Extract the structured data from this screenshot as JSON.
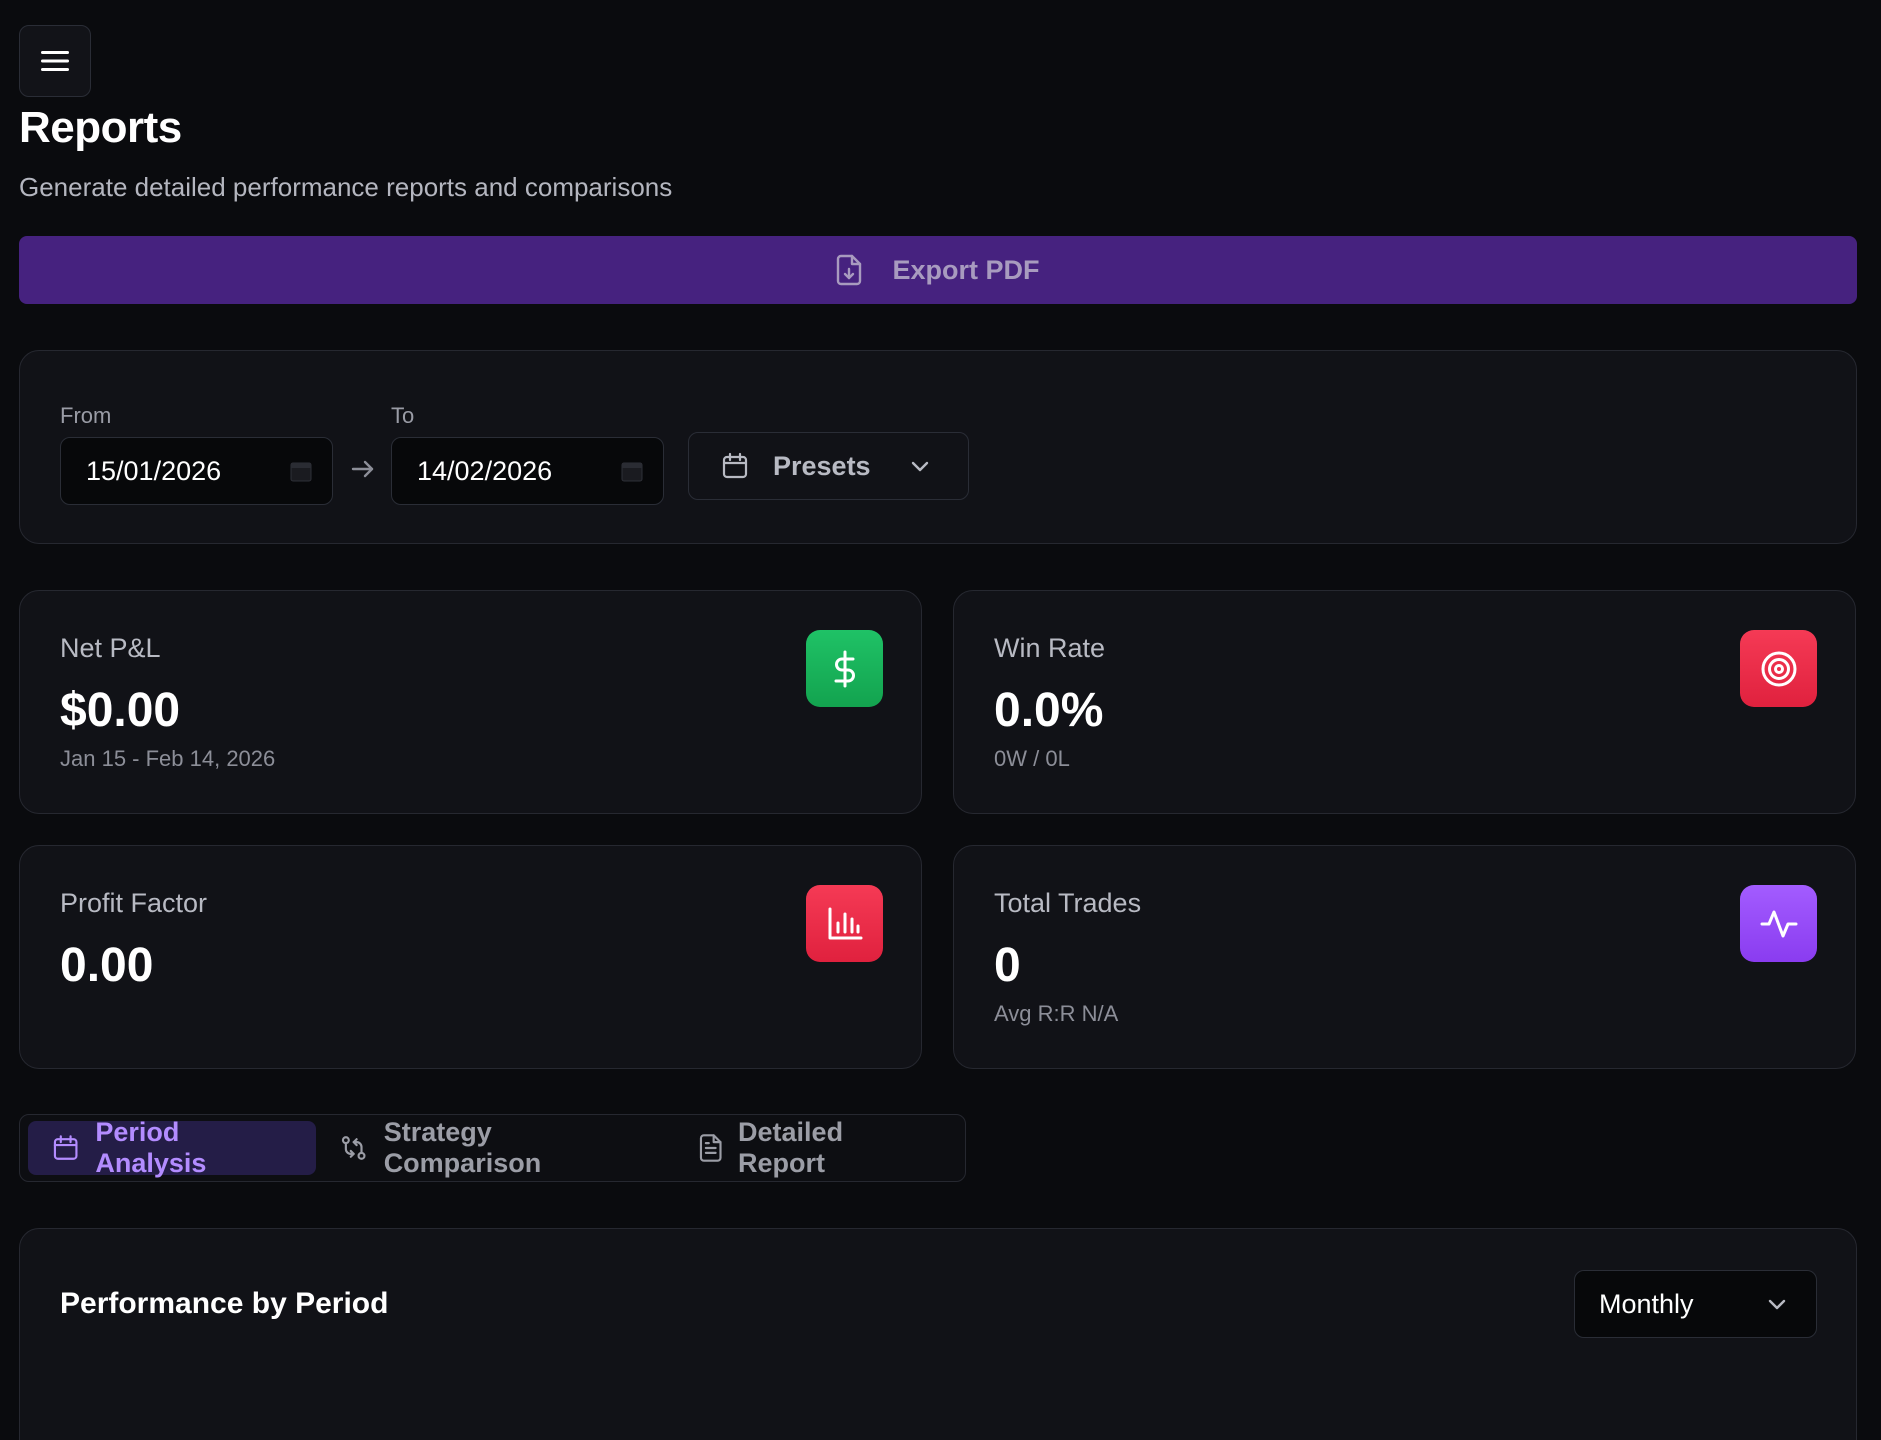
{
  "header": {
    "title": "Reports",
    "subtitle": "Generate detailed performance reports and comparisons"
  },
  "toolbar": {
    "export_label": "Export PDF"
  },
  "filters": {
    "from_label": "From",
    "from_value": "15/01/2026",
    "to_label": "To",
    "to_value": "14/02/2026",
    "presets_label": "Presets"
  },
  "stats": [
    {
      "label": "Net P&L",
      "value": "$0.00",
      "sub": "Jan 15 - Feb 14, 2026",
      "icon": "dollar-icon",
      "color": "#1db954"
    },
    {
      "label": "Win Rate",
      "value": "0.0%",
      "sub": "0W / 0L",
      "icon": "target-icon",
      "color": "#f0304a"
    },
    {
      "label": "Profit Factor",
      "value": "0.00",
      "sub": "",
      "icon": "bar-chart-icon",
      "color": "#f0304a"
    },
    {
      "label": "Total Trades",
      "value": "0",
      "sub": "Avg R:R N/A",
      "icon": "activity-icon",
      "color": "#9b4dff"
    }
  ],
  "tabs": [
    {
      "label": "Period Analysis",
      "icon": "calendar-icon",
      "active": true
    },
    {
      "label": "Strategy Comparison",
      "icon": "git-compare-icon",
      "active": false
    },
    {
      "label": "Detailed Report",
      "icon": "file-text-icon",
      "active": false
    }
  ],
  "performance": {
    "title": "Performance by Period",
    "period_value": "Monthly"
  },
  "colors": {
    "background": "#0a0b0e",
    "card": "#111217",
    "accent": "#46227f",
    "tab_active_text": "#b38cff"
  }
}
